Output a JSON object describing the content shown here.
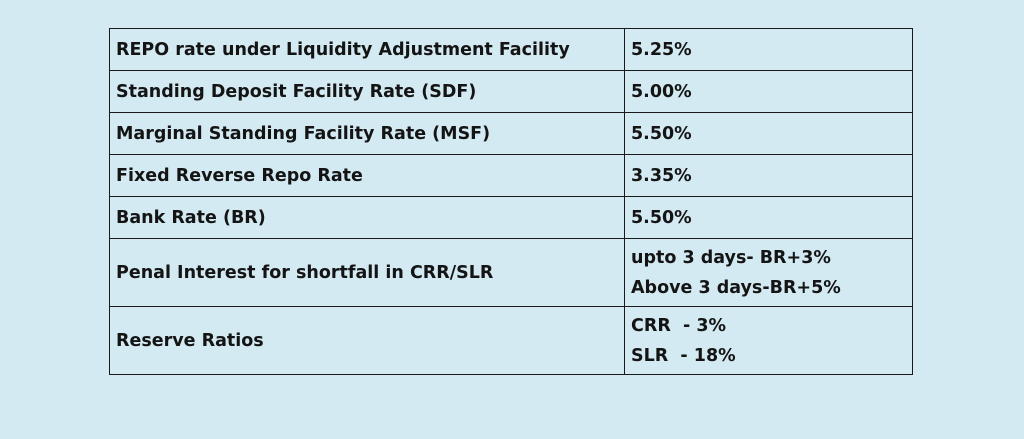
{
  "rows": [
    {
      "label": "REPO rate under Liquidity Adjustment Facility",
      "value": [
        "5.25%"
      ]
    },
    {
      "label": "Standing Deposit Facility Rate (SDF)",
      "value": [
        "5.00%"
      ]
    },
    {
      "label": "Marginal Standing Facility Rate (MSF)",
      "value": [
        "5.50%"
      ]
    },
    {
      "label": "Fixed Reverse Repo Rate",
      "value": [
        "3.35%"
      ]
    },
    {
      "label": "Bank Rate (BR)",
      "value": [
        "5.50%"
      ]
    },
    {
      "label": "Penal Interest for shortfall in CRR/SLR",
      "value": [
        "upto 3 days- BR+3%",
        "Above 3 days-BR+5%"
      ]
    },
    {
      "label": "Reserve Ratios",
      "value": [
        "CRR  - 3%",
        "SLR  - 18%"
      ]
    }
  ]
}
